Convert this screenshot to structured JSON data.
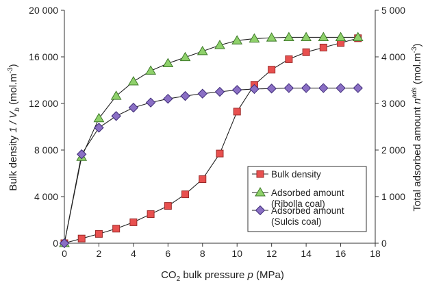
{
  "chart_data": {
    "type": "line",
    "x_axis": {
      "label_prefix": "CO",
      "label_sub": "2",
      "label_mid": " bulk pressure ",
      "label_var": "p",
      "label_unit": " (MPa)",
      "range": [
        0,
        18
      ],
      "ticks": [
        0,
        2,
        4,
        6,
        8,
        10,
        12,
        14,
        16,
        18
      ],
      "tick_labels": [
        "0",
        "2",
        "4",
        "6",
        "8",
        "10",
        "12",
        "14",
        "16",
        "18"
      ]
    },
    "y_left": {
      "label_prefix": "Bulk density ",
      "label_var": "1 / V",
      "label_sub": "b",
      "label_unit": " (mol.m",
      "label_sup": "-3",
      "label_close": ")",
      "range": [
        0,
        20000
      ],
      "ticks": [
        0,
        4000,
        8000,
        12000,
        16000,
        20000
      ],
      "tick_labels": [
        "0",
        "4 000",
        "8 000",
        "12 000",
        "16 000",
        "20 000"
      ]
    },
    "y_right": {
      "label_prefix": "Total adsorbed amount ",
      "label_var": "n",
      "label_sup": "ads",
      "label_unit": " (mol.m",
      "label_sup2": "-3",
      "label_close": ")",
      "range": [
        0,
        5000
      ],
      "ticks": [
        0,
        1000,
        2000,
        3000,
        4000,
        5000
      ],
      "tick_labels": [
        "0",
        "1 000",
        "2 000",
        "3 000",
        "4 000",
        "5 000"
      ]
    },
    "x": [
      0,
      1,
      2,
      3,
      4,
      5,
      6,
      7,
      8,
      9,
      10,
      11,
      12,
      13,
      14,
      15,
      16,
      17
    ],
    "series": [
      {
        "name": "Bulk density",
        "axis": "left",
        "marker": "square",
        "color": "#e8504f",
        "stroke": "#9a2b2a",
        "values": [
          0,
          400,
          800,
          1250,
          1800,
          2500,
          3200,
          4200,
          5500,
          7700,
          11300,
          13600,
          14900,
          15800,
          16400,
          16800,
          17200,
          17600
        ]
      },
      {
        "name": "Adsorbed amount",
        "name2": "(Ribolla coal)",
        "axis": "right",
        "marker": "triangle",
        "color": "#8fd16b",
        "stroke": "#3f7a2a",
        "values": [
          0,
          1850,
          2680,
          3160,
          3470,
          3700,
          3860,
          3990,
          4120,
          4250,
          4350,
          4390,
          4410,
          4420,
          4420,
          4420,
          4420,
          4420
        ]
      },
      {
        "name": "Adsorbed amount",
        "name2": "(Sulcis coal)",
        "axis": "right",
        "marker": "diamond",
        "color": "#8a6fc4",
        "stroke": "#3e2b78",
        "values": [
          0,
          1910,
          2480,
          2730,
          2910,
          3020,
          3100,
          3160,
          3210,
          3250,
          3290,
          3310,
          3320,
          3330,
          3330,
          3330,
          3330,
          3330
        ]
      }
    ],
    "legend_position": "bottom-right-inside",
    "grid": false
  }
}
